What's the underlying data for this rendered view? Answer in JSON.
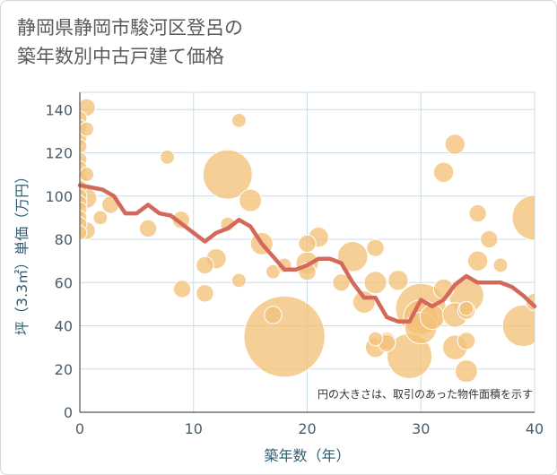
{
  "chart_data": {
    "type": "scatter",
    "title": "静岡県静岡市駿河区登呂の\n築年数別中古戸建て価格",
    "xlabel": "築年数（年）",
    "ylabel": "坪（3.3㎡）単価（万円）",
    "xlim": [
      0,
      40
    ],
    "ylim": [
      0,
      148
    ],
    "x_ticks": [
      0,
      10,
      20,
      30,
      40
    ],
    "y_ticks": [
      0,
      20,
      40,
      60,
      80,
      100,
      120,
      140
    ],
    "grid": true,
    "note": "円の大きさは、取引のあった物件面積を示す",
    "colors": {
      "bubble": "#f3c27a",
      "line": "#d2695a",
      "grid": "#c9dbe6",
      "tick": "#4a5d6a"
    },
    "bubbles": [
      {
        "x": 0,
        "y": 136,
        "size": 2
      },
      {
        "x": 0,
        "y": 132,
        "size": 2
      },
      {
        "x": 0,
        "y": 127,
        "size": 2
      },
      {
        "x": 0,
        "y": 123,
        "size": 2
      },
      {
        "x": 0,
        "y": 117,
        "size": 2
      },
      {
        "x": 0,
        "y": 113,
        "size": 2
      },
      {
        "x": 0,
        "y": 108,
        "size": 2
      },
      {
        "x": 0,
        "y": 104,
        "size": 2
      },
      {
        "x": 0,
        "y": 100,
        "size": 2
      },
      {
        "x": 0,
        "y": 97,
        "size": 2
      },
      {
        "x": 0,
        "y": 94,
        "size": 2
      },
      {
        "x": 0,
        "y": 90,
        "size": 2
      },
      {
        "x": 0,
        "y": 87,
        "size": 2
      },
      {
        "x": 0,
        "y": 83,
        "size": 2
      },
      {
        "x": 0.6,
        "y": 141,
        "size": 3
      },
      {
        "x": 0.6,
        "y": 131,
        "size": 2
      },
      {
        "x": 0.6,
        "y": 110,
        "size": 2
      },
      {
        "x": 0.6,
        "y": 99,
        "size": 4
      },
      {
        "x": 0.6,
        "y": 84,
        "size": 3
      },
      {
        "x": 1.8,
        "y": 90,
        "size": 2
      },
      {
        "x": 2.7,
        "y": 96,
        "size": 3
      },
      {
        "x": 6,
        "y": 85,
        "size": 3
      },
      {
        "x": 7.7,
        "y": 118,
        "size": 2
      },
      {
        "x": 8.9,
        "y": 89,
        "size": 3
      },
      {
        "x": 9,
        "y": 57,
        "size": 3
      },
      {
        "x": 11,
        "y": 68,
        "size": 3
      },
      {
        "x": 11,
        "y": 55,
        "size": 3
      },
      {
        "x": 12,
        "y": 71,
        "size": 4
      },
      {
        "x": 13,
        "y": 110,
        "size": 24
      },
      {
        "x": 13,
        "y": 87,
        "size": 2
      },
      {
        "x": 14,
        "y": 135,
        "size": 2
      },
      {
        "x": 14,
        "y": 61,
        "size": 2
      },
      {
        "x": 15,
        "y": 98,
        "size": 5
      },
      {
        "x": 16,
        "y": 78,
        "size": 5
      },
      {
        "x": 17,
        "y": 65,
        "size": 2
      },
      {
        "x": 17,
        "y": 45,
        "size": 3
      },
      {
        "x": 18,
        "y": 35,
        "size": 65
      },
      {
        "x": 18,
        "y": 68,
        "size": 2
      },
      {
        "x": 20,
        "y": 78,
        "size": 3
      },
      {
        "x": 20,
        "y": 69,
        "size": 5
      },
      {
        "x": 20,
        "y": 65,
        "size": 3
      },
      {
        "x": 21,
        "y": 81,
        "size": 4
      },
      {
        "x": 23,
        "y": 60,
        "size": 3
      },
      {
        "x": 24,
        "y": 72,
        "size": 9
      },
      {
        "x": 25,
        "y": 51,
        "size": 5
      },
      {
        "x": 26,
        "y": 76,
        "size": 3
      },
      {
        "x": 26,
        "y": 60,
        "size": 5
      },
      {
        "x": 26,
        "y": 34,
        "size": 2
      },
      {
        "x": 26,
        "y": 30,
        "size": 4
      },
      {
        "x": 27,
        "y": 33,
        "size": 3
      },
      {
        "x": 27,
        "y": 32,
        "size": 3
      },
      {
        "x": 28,
        "y": 61,
        "size": 4
      },
      {
        "x": 29,
        "y": 26,
        "size": 20
      },
      {
        "x": 30,
        "y": 48,
        "size": 25
      },
      {
        "x": 30,
        "y": 44,
        "size": 12
      },
      {
        "x": 30,
        "y": 39,
        "size": 10
      },
      {
        "x": 31,
        "y": 44,
        "size": 6
      },
      {
        "x": 32,
        "y": 57,
        "size": 4
      },
      {
        "x": 32,
        "y": 111,
        "size": 4
      },
      {
        "x": 33,
        "y": 124,
        "size": 4
      },
      {
        "x": 33,
        "y": 45,
        "size": 6
      },
      {
        "x": 33,
        "y": 30,
        "size": 6
      },
      {
        "x": 34,
        "y": 54,
        "size": 12
      },
      {
        "x": 34,
        "y": 48,
        "size": 2
      },
      {
        "x": 34,
        "y": 47,
        "size": 3
      },
      {
        "x": 34,
        "y": 33,
        "size": 3
      },
      {
        "x": 34,
        "y": 19,
        "size": 5
      },
      {
        "x": 35,
        "y": 92,
        "size": 3
      },
      {
        "x": 35,
        "y": 70,
        "size": 4
      },
      {
        "x": 36,
        "y": 80,
        "size": 3
      },
      {
        "x": 37,
        "y": 68,
        "size": 2
      },
      {
        "x": 39,
        "y": 40,
        "size": 17
      },
      {
        "x": 40,
        "y": 90,
        "size": 20
      },
      {
        "x": 40,
        "y": 51,
        "size": 3
      }
    ],
    "line": {
      "x": [
        0,
        1,
        2,
        3,
        4,
        5,
        6,
        7,
        8,
        9,
        10,
        11,
        12,
        13,
        14,
        15,
        16,
        17,
        18,
        19,
        20,
        21,
        22,
        23,
        24,
        25,
        26,
        27,
        28,
        29,
        30,
        31,
        32,
        33,
        34,
        35,
        36,
        37,
        38,
        39,
        40
      ],
      "y": [
        105,
        104,
        103,
        100,
        92,
        92,
        96,
        92,
        91,
        87,
        83,
        79,
        83,
        85,
        89,
        86,
        78,
        72,
        66,
        66,
        68,
        71,
        71,
        69,
        60,
        53,
        53,
        44,
        42,
        42,
        52,
        49,
        52,
        59,
        63,
        60,
        60,
        60,
        58,
        54,
        49
      ]
    }
  }
}
